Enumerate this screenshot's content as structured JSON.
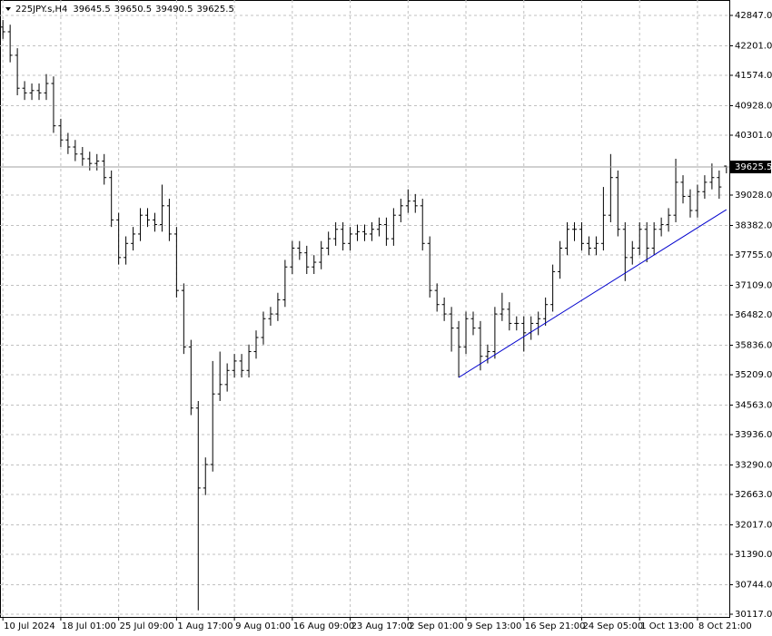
{
  "chart_data": {
    "type": "ohlc",
    "symbol": "225JPY.s,H4",
    "color": "#000000",
    "grid": true,
    "xlim": [
      -0.4,
      100.4
    ],
    "ylim": [
      30059,
      43175
    ],
    "xticks": [
      {
        "value": 0,
        "label": "10 Jul 2024"
      },
      {
        "value": 8,
        "label": "18 Jul 01:00"
      },
      {
        "value": 16,
        "label": "25 Jul 09:00"
      },
      {
        "value": 24,
        "label": "1 Aug 17:00"
      },
      {
        "value": 32,
        "label": "9 Aug 01:00"
      },
      {
        "value": 40,
        "label": "16 Aug 09:00"
      },
      {
        "value": 48,
        "label": "23 Aug 17:00"
      },
      {
        "value": 56,
        "label": "2 Sep 01:00"
      },
      {
        "value": 64,
        "label": "9 Sep 13:00"
      },
      {
        "value": 72,
        "label": "16 Sep 21:00"
      },
      {
        "value": 80,
        "label": "24 Sep 05:00"
      },
      {
        "value": 88,
        "label": "1 Oct 13:00"
      },
      {
        "value": 96,
        "label": "8 Oct 21:00"
      }
    ],
    "yticks": [
      {
        "value": 42847,
        "label": "42847.0"
      },
      {
        "value": 42201,
        "label": "42201.0"
      },
      {
        "value": 41574,
        "label": "41574.0"
      },
      {
        "value": 40928,
        "label": "40928.0"
      },
      {
        "value": 40301,
        "label": "40301.0"
      },
      {
        "value": 39028,
        "label": "39028.0"
      },
      {
        "value": 38382,
        "label": "38382.0"
      },
      {
        "value": 37755,
        "label": "37755.0"
      },
      {
        "value": 37109,
        "label": "37109.0"
      },
      {
        "value": 36482,
        "label": "36482.0"
      },
      {
        "value": 35836,
        "label": "35836.0"
      },
      {
        "value": 35209,
        "label": "35209.0"
      },
      {
        "value": 34563,
        "label": "34563.0"
      },
      {
        "value": 33936,
        "label": "33936.0"
      },
      {
        "value": 33290,
        "label": "33290.0"
      },
      {
        "value": 32663,
        "label": "32663.0"
      },
      {
        "value": 32017,
        "label": "32017.0"
      },
      {
        "value": 31390,
        "label": "31390.0"
      },
      {
        "value": 30744,
        "label": "30744.0"
      },
      {
        "value": 30117,
        "label": "30117.0"
      }
    ],
    "series": [
      {
        "open": [
          42600,
          42500,
          42000,
          41300,
          41200,
          41250,
          41200,
          41400,
          40500,
          40200,
          40050,
          39900,
          39800,
          39700,
          39750,
          39400,
          38500,
          37700,
          38000,
          38200,
          38600,
          38500,
          38400,
          38800,
          38200,
          37000,
          35800,
          34500,
          32800,
          33300,
          34800,
          35000,
          35300,
          35500,
          35300,
          35700,
          36000,
          36400,
          36500,
          36800,
          37500,
          37900,
          37800,
          37500,
          37600,
          37900,
          38100,
          38300,
          38000,
          38200,
          38250,
          38200,
          38300,
          38400,
          38100,
          38600,
          38800,
          38900,
          38800,
          38000,
          37000,
          36700,
          36500,
          36200,
          35800,
          36400,
          36200,
          35600,
          35700,
          36500,
          36600,
          36300,
          36300,
          36100,
          36300,
          36400,
          36700,
          37400,
          37900,
          38300,
          38300,
          38000,
          37900,
          38000,
          38600,
          39400,
          38300,
          37700,
          37900,
          38300,
          37900,
          38300,
          38400,
          38600,
          39300,
          39000,
          38700,
          39100,
          39300,
          39400,
          39645.5
        ],
        "high": [
          42750,
          42650,
          42150,
          41450,
          41400,
          41400,
          41600,
          41550,
          40650,
          40350,
          40200,
          40050,
          39950,
          39900,
          39900,
          39550,
          38650,
          38150,
          38350,
          38750,
          38750,
          38650,
          39250,
          38950,
          38350,
          37150,
          35950,
          34650,
          33450,
          35500,
          35700,
          35450,
          35650,
          35650,
          35850,
          36150,
          36550,
          36650,
          36950,
          37650,
          38050,
          38050,
          37950,
          37750,
          38050,
          38250,
          38450,
          38450,
          38350,
          38400,
          38400,
          38450,
          38550,
          38550,
          38750,
          38950,
          39150,
          39050,
          38950,
          38150,
          37150,
          36850,
          36650,
          36350,
          36550,
          36550,
          36350,
          35850,
          36650,
          36950,
          36750,
          36450,
          36450,
          36450,
          36550,
          36850,
          37550,
          38050,
          38450,
          38450,
          38450,
          38150,
          38150,
          39200,
          39900,
          39550,
          38450,
          38050,
          38450,
          38450,
          38450,
          38550,
          38750,
          39800,
          39450,
          39150,
          39250,
          39450,
          39700,
          39550,
          39650.5
        ],
        "low": [
          42350,
          41850,
          41150,
          41050,
          41050,
          41050,
          41050,
          40350,
          40050,
          39900,
          39750,
          39650,
          39550,
          39550,
          39250,
          38350,
          37550,
          37550,
          37850,
          38050,
          38350,
          38250,
          38250,
          38050,
          36850,
          35650,
          34350,
          30200,
          32650,
          33150,
          34650,
          34850,
          35150,
          35150,
          35150,
          35550,
          35850,
          36250,
          36350,
          36650,
          37350,
          37650,
          37350,
          37350,
          37450,
          37750,
          37950,
          37850,
          37850,
          38050,
          38050,
          38050,
          38150,
          37950,
          37950,
          38450,
          38650,
          38650,
          37850,
          36850,
          36550,
          36350,
          35700,
          35150,
          35650,
          36050,
          35300,
          35450,
          35550,
          36350,
          36150,
          36150,
          35700,
          35950,
          36050,
          36250,
          36550,
          37250,
          37750,
          38050,
          37850,
          37750,
          37750,
          37850,
          38450,
          38150,
          37200,
          37550,
          37750,
          37600,
          37750,
          38150,
          38250,
          38450,
          38850,
          38550,
          38550,
          38950,
          39150,
          38950,
          39490.5
        ],
        "close": [
          42500,
          42000,
          41300,
          41200,
          41250,
          41200,
          41400,
          40500,
          40200,
          40050,
          39900,
          39800,
          39700,
          39750,
          39400,
          38500,
          37700,
          38000,
          38200,
          38600,
          38500,
          38400,
          38800,
          38200,
          37000,
          35800,
          34500,
          32800,
          33300,
          34800,
          35000,
          35300,
          35500,
          35300,
          35700,
          36000,
          36400,
          36500,
          36800,
          37500,
          37900,
          37800,
          37500,
          37600,
          37900,
          38100,
          38300,
          38000,
          38200,
          38250,
          38200,
          38300,
          38400,
          38100,
          38600,
          38800,
          38900,
          38800,
          38000,
          37000,
          36700,
          36500,
          36200,
          35800,
          36400,
          36200,
          35600,
          35700,
          36500,
          36600,
          36300,
          36300,
          36100,
          36300,
          36400,
          36700,
          37400,
          37900,
          38300,
          38300,
          38000,
          37900,
          38000,
          38600,
          39400,
          38300,
          37700,
          37900,
          38300,
          37900,
          38300,
          38400,
          38600,
          39300,
          39000,
          38700,
          39100,
          39300,
          39400,
          39200,
          39625.5
        ]
      }
    ],
    "trendline": {
      "x": [
        63,
        100
      ],
      "values": [
        35151,
        38719
      ],
      "color": "#0000cd"
    }
  }
}
